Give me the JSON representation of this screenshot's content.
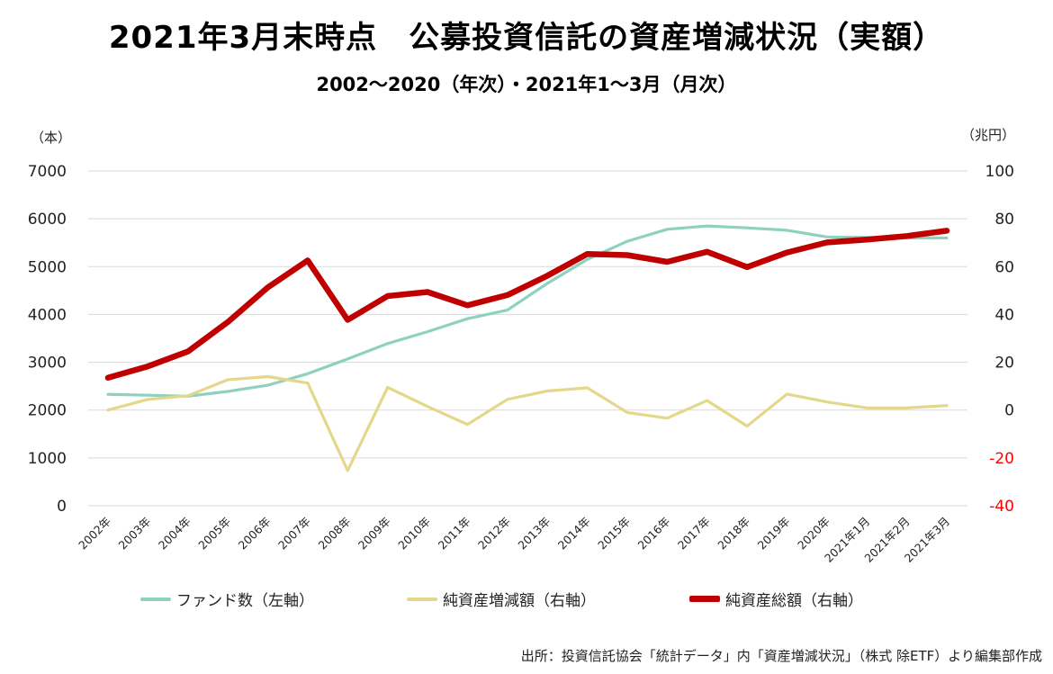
{
  "header": {
    "title": "2021年3月末時点　公募投資信託の資産増減状況（実額）",
    "subtitle": "2002〜2020（年次）・2021年1〜3月（月次）"
  },
  "axes": {
    "left_unit": "（本）",
    "right_unit": "（兆円）"
  },
  "legend": {
    "funds": "ファンド数（左軸）",
    "net_change": "純資産増減額（右軸）",
    "total": "純資産総額（右軸）"
  },
  "source": "出所：投資信託協会「統計データ」内「資産増減状況」（株式 除ETF）より編集部作成",
  "colors": {
    "funds": "#8ed1bf",
    "net_change": "#e3d88a",
    "total": "#c00000",
    "negative_tick": "#ff0000",
    "grid": "#d9d9d9"
  },
  "chart_data": {
    "type": "line",
    "categories": [
      "2002年",
      "2003年",
      "2004年",
      "2005年",
      "2006年",
      "2007年",
      "2008年",
      "2009年",
      "2010年",
      "2011年",
      "2012年",
      "2013年",
      "2014年",
      "2015年",
      "2016年",
      "2017年",
      "2018年",
      "2019年",
      "2020年",
      "2021年1月",
      "2021年2月",
      "2021年3月"
    ],
    "left_axis": {
      "ylim": [
        0,
        7000
      ],
      "ticks": [
        "0",
        "1000",
        "2000",
        "3000",
        "4000",
        "5000",
        "6000",
        "7000"
      ]
    },
    "right_axis": {
      "ylim": [
        -40,
        100
      ],
      "ticks": [
        "-40",
        "-20",
        "0",
        "20",
        "40",
        "60",
        "80",
        "100"
      ]
    },
    "grid": true,
    "legend_position": "bottom",
    "series": [
      {
        "name": "ファンド数（左軸）",
        "axis": "left",
        "values": [
          2330,
          2310,
          2290,
          2390,
          2520,
          2760,
          3070,
          3390,
          3640,
          3910,
          4090,
          4650,
          5150,
          5530,
          5780,
          5850,
          5810,
          5760,
          5620,
          5610,
          5600,
          5600
        ]
      },
      {
        "name": "純資産増減額（右軸）",
        "axis": "right",
        "values": [
          0,
          4.5,
          6,
          12.7,
          14,
          11.3,
          -25.3,
          9.5,
          1.5,
          -6,
          4.5,
          8,
          9.3,
          -1,
          -3.4,
          4,
          -6.7,
          6.7,
          3.4,
          0.9,
          0.9,
          1.9
        ]
      },
      {
        "name": "純資産総額（右軸）",
        "axis": "right",
        "values": [
          13.5,
          18.3,
          24.5,
          36.8,
          51.3,
          62.6,
          37.7,
          47.7,
          49.4,
          43.8,
          48.1,
          56.2,
          65.3,
          64.8,
          62,
          66.2,
          59.8,
          65.9,
          70.1,
          71.3,
          72.8,
          75
        ]
      }
    ]
  }
}
